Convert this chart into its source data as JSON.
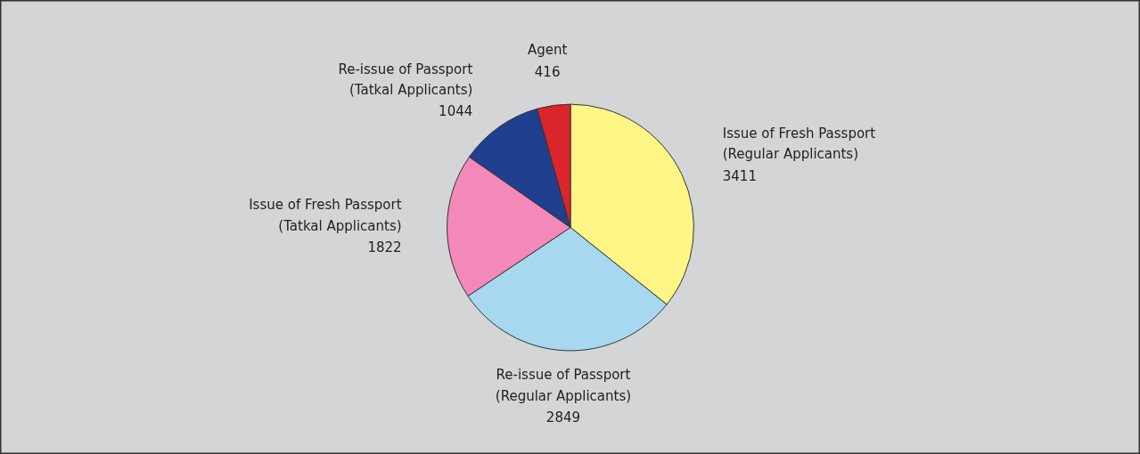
{
  "chart_data": {
    "type": "pie",
    "categories": [
      "Issue of Fresh Passport\n(Regular Applicants)",
      "Re-issue of Passport\n(Regular Applicants)",
      "Issue of Fresh Passport\n(Tatkal Applicants)",
      "Re-issue of Passport\n(Tatkal Applicants)",
      "Agent"
    ],
    "values": [
      3411,
      2849,
      1822,
      1044,
      416
    ],
    "colors": [
      "#fff685",
      "#a8d8f0",
      "#f389b8",
      "#213f8f",
      "#d9252b"
    ],
    "data_labels": true
  }
}
